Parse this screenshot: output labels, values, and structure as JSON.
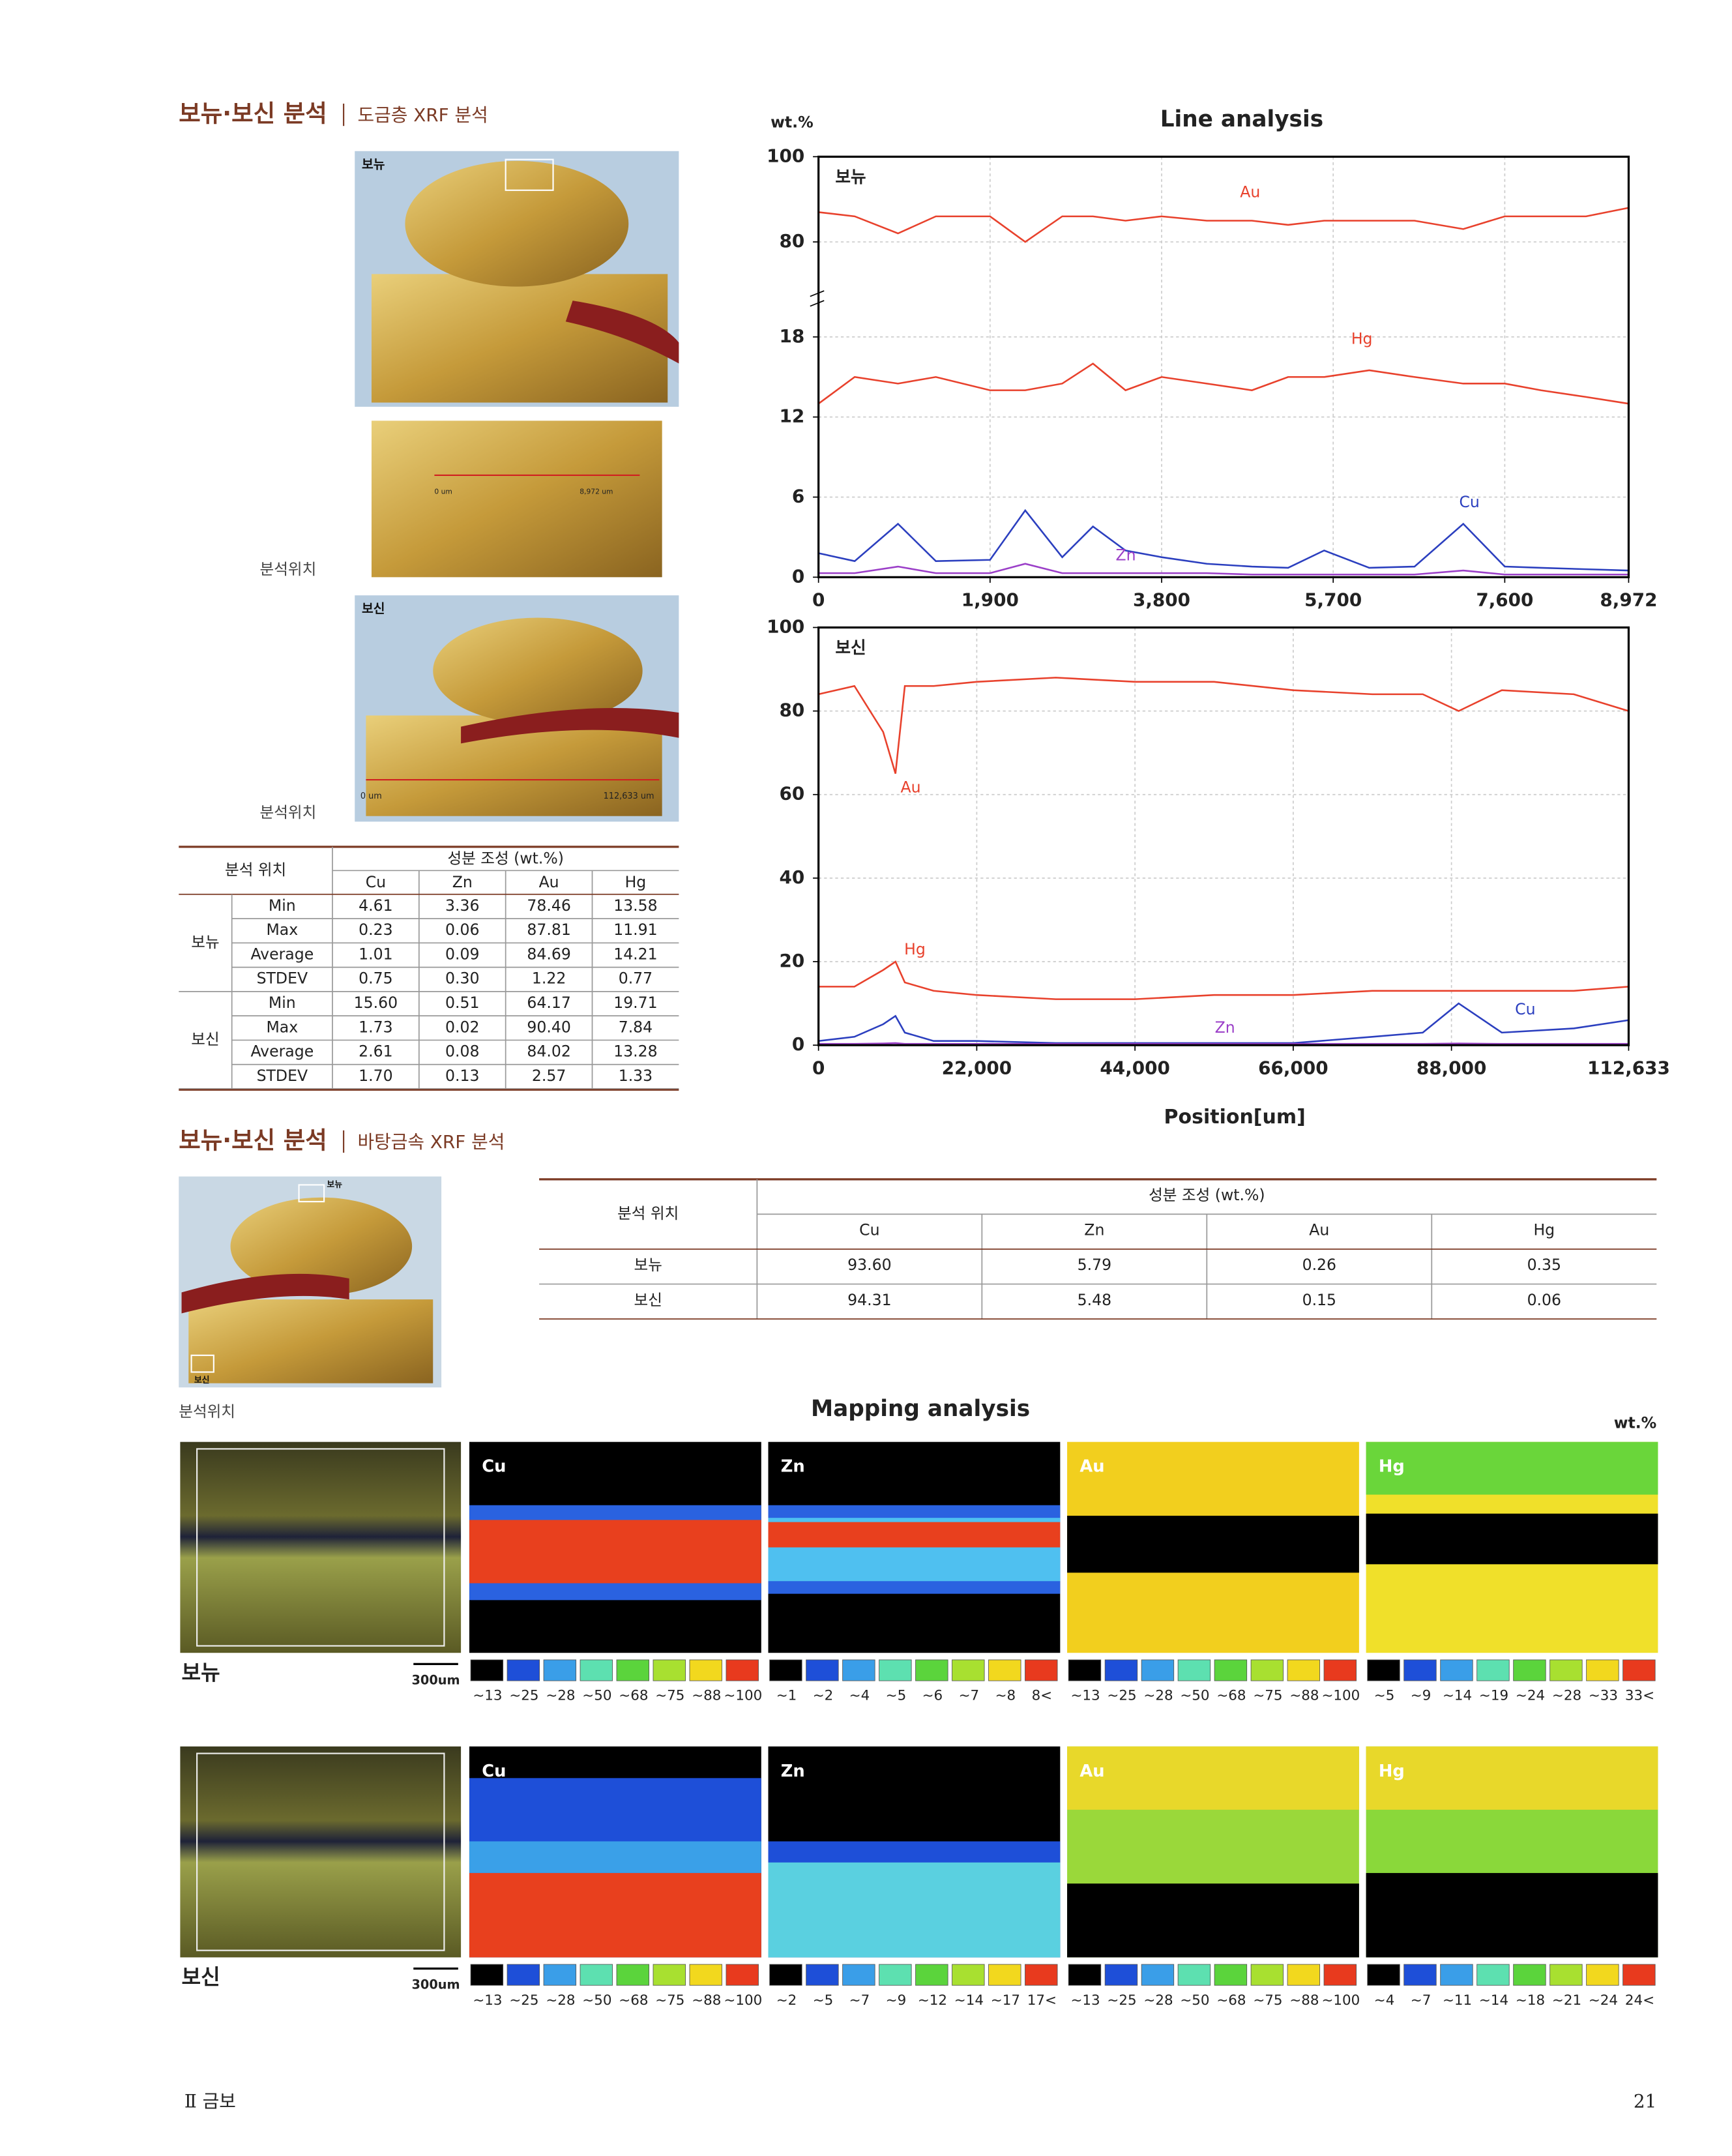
{
  "section1": {
    "title": "보뉴·보신 분석",
    "subtitle": "도금층 XRF 분석"
  },
  "photos": {
    "top_label": "보뉴",
    "mid_start": "0 um",
    "mid_end": "8,972 um",
    "bottom_label": "보신",
    "bottom_start": "0 um",
    "bottom_end": "112,633 um",
    "position_caption": "분석위치"
  },
  "table1": {
    "header": {
      "location": "분석 위치",
      "composition": "성분 조성 (wt.%)",
      "elements": [
        "Cu",
        "Zn",
        "Au",
        "Hg"
      ]
    },
    "groups": [
      {
        "name": "보뉴",
        "rows": [
          [
            "Min",
            "4.61",
            "3.36",
            "78.46",
            "13.58"
          ],
          [
            "Max",
            "0.23",
            "0.06",
            "87.81",
            "11.91"
          ],
          [
            "Average",
            "1.01",
            "0.09",
            "84.69",
            "14.21"
          ],
          [
            "STDEV",
            "0.75",
            "0.30",
            "1.22",
            "0.77"
          ]
        ]
      },
      {
        "name": "보신",
        "rows": [
          [
            "Min",
            "15.60",
            "0.51",
            "64.17",
            "19.71"
          ],
          [
            "Max",
            "1.73",
            "0.02",
            "90.40",
            "7.84"
          ],
          [
            "Average",
            "2.61",
            "0.08",
            "84.02",
            "13.28"
          ],
          [
            "STDEV",
            "1.70",
            "0.13",
            "2.57",
            "1.33"
          ]
        ]
      }
    ]
  },
  "line_analysis": {
    "title": "Line analysis",
    "y_unit": "wt.%",
    "x_label": "Position[um]",
    "charts": [
      {
        "type": "line",
        "label": "보뉴",
        "xlim": [
          0,
          8972
        ],
        "ylim": [
          0,
          100
        ],
        "axis_break": [
          18,
          80
        ],
        "yticks": [
          0,
          6,
          12,
          18,
          80,
          100
        ],
        "xticks": [
          0,
          {
            "value": 1900,
            "label": "1,900"
          },
          {
            "value": 3800,
            "label": "3,800"
          },
          {
            "value": 5700,
            "label": "5,700"
          },
          {
            "value": 7600,
            "label": "7,600"
          },
          {
            "value": 8972,
            "label": "8,972"
          }
        ],
        "grid": true,
        "x": [
          0,
          400,
          880,
          1300,
          1900,
          2290,
          2700,
          3040,
          3400,
          3800,
          4300,
          4800,
          5200,
          5600,
          6100,
          6600,
          7140,
          7600,
          8000,
          8500,
          8972
        ],
        "series": [
          {
            "name": "Au",
            "color": "#e8412c",
            "values": [
              87,
              86,
              82,
              86,
              86,
              80,
              86,
              86,
              85,
              86,
              85,
              85,
              84,
              85,
              85,
              85,
              83,
              86,
              86,
              86,
              88
            ]
          },
          {
            "name": "Hg",
            "color": "#e8412c",
            "values": [
              13,
              15,
              14.5,
              15,
              14,
              14,
              14.5,
              16,
              14,
              15,
              14.5,
              14,
              15,
              15,
              15.5,
              15,
              14.5,
              14.5,
              14,
              13.5,
              13
            ]
          },
          {
            "name": "Cu",
            "color": "#2b3fbf",
            "values": [
              1.8,
              1.2,
              4,
              1.2,
              1.3,
              5,
              1.5,
              3.8,
              2,
              1.5,
              1,
              0.8,
              0.7,
              2,
              0.7,
              0.8,
              4,
              0.8,
              0.7,
              0.6,
              0.5
            ]
          },
          {
            "name": "Zn",
            "color": "#9b3fc8",
            "values": [
              0.3,
              0.3,
              0.8,
              0.3,
              0.3,
              1,
              0.3,
              0.3,
              0.3,
              0.3,
              0.3,
              0.2,
              0.2,
              0.2,
              0.2,
              0.2,
              0.5,
              0.2,
              0.2,
              0.2,
              0.2
            ]
          }
        ]
      },
      {
        "type": "line",
        "label": "보신",
        "xlim": [
          0,
          112633
        ],
        "ylim": [
          0,
          100
        ],
        "yticks": [
          0,
          20,
          40,
          60,
          80,
          100
        ],
        "xticks": [
          0,
          {
            "value": 22000,
            "label": "22,000"
          },
          {
            "value": 44000,
            "label": "44,000"
          },
          {
            "value": 66000,
            "label": "66,000"
          },
          {
            "value": 88000,
            "label": "88,000"
          },
          {
            "value": 112633,
            "label": "112,633"
          }
        ],
        "grid": true,
        "x": [
          0,
          5000,
          9000,
          10700,
          12000,
          16000,
          22000,
          33000,
          44000,
          55000,
          66000,
          77000,
          84000,
          89000,
          95000,
          105000,
          112633
        ],
        "series": [
          {
            "name": "Au",
            "color": "#e8412c",
            "values": [
              84,
              86,
              75,
              65,
              86,
              86,
              87,
              88,
              87,
              87,
              85,
              84,
              84,
              80,
              85,
              84,
              80
            ]
          },
          {
            "name": "Hg",
            "color": "#e8412c",
            "values": [
              14,
              14,
              18,
              20,
              15,
              13,
              12,
              11,
              11,
              12,
              12,
              13,
              13,
              13,
              13,
              13,
              14
            ]
          },
          {
            "name": "Cu",
            "color": "#2b3fbf",
            "values": [
              1,
              2,
              5,
              7,
              3,
              1,
              1,
              0.5,
              0.5,
              0.5,
              0.5,
              2,
              3,
              10,
              3,
              4,
              6
            ]
          },
          {
            "name": "Zn",
            "color": "#9b3fc8",
            "values": [
              0.3,
              0.3,
              0.4,
              0.5,
              0.3,
              0.3,
              0.3,
              0.3,
              0.3,
              0.3,
              0.3,
              0.3,
              0.3,
              0.4,
              0.3,
              0.3,
              0.3
            ]
          }
        ]
      }
    ]
  },
  "section2": {
    "title": "보뉴·보신 분석",
    "subtitle": "바탕금속 XRF 분석",
    "photo_top": "보뉴",
    "photo_bottom": "보신",
    "position_caption": "분석위치"
  },
  "table2": {
    "header": {
      "location": "분석 위치",
      "composition": "성분 조성 (wt.%)",
      "elements": [
        "Cu",
        "Zn",
        "Au",
        "Hg"
      ]
    },
    "rows": [
      [
        "보뉴",
        "93.60",
        "5.79",
        "0.26",
        "0.35"
      ],
      [
        "보신",
        "94.31",
        "5.48",
        "0.15",
        "0.06"
      ]
    ]
  },
  "mapping": {
    "title": "Mapping analysis",
    "unit": "wt.%",
    "scale_colors": [
      "#000000",
      "#1e4fd8",
      "#3a9ee8",
      "#5de0b0",
      "#5bd43c",
      "#a8e030",
      "#f2d81e",
      "#e83a1e"
    ],
    "rows": [
      {
        "name": "보뉴",
        "scale_bar": "300um",
        "panels": [
          {
            "element": "Cu",
            "levels": [
              "~13",
              "~25",
              "~28",
              "~50",
              "~68",
              "~75",
              "~88",
              "~100"
            ]
          },
          {
            "element": "Zn",
            "levels": [
              "~1",
              "~2",
              "~4",
              "~5",
              "~6",
              "~7",
              "~8",
              "8<"
            ]
          },
          {
            "element": "Au",
            "levels": [
              "~13",
              "~25",
              "~28",
              "~50",
              "~68",
              "~75",
              "~88",
              "~100"
            ]
          },
          {
            "element": "Hg",
            "levels": [
              "~5",
              "~9",
              "~14",
              "~19",
              "~24",
              "~28",
              "~33",
              "33<"
            ]
          }
        ]
      },
      {
        "name": "보신",
        "scale_bar": "300um",
        "panels": [
          {
            "element": "Cu",
            "levels": [
              "~13",
              "~25",
              "~28",
              "~50",
              "~68",
              "~75",
              "~88",
              "~100"
            ]
          },
          {
            "element": "Zn",
            "levels": [
              "~2",
              "~5",
              "~7",
              "~9",
              "~12",
              "~14",
              "~17",
              "17<"
            ]
          },
          {
            "element": "Au",
            "levels": [
              "~13",
              "~25",
              "~28",
              "~50",
              "~68",
              "~75",
              "~88",
              "~100"
            ]
          },
          {
            "element": "Hg",
            "levels": [
              "~4",
              "~7",
              "~11",
              "~14",
              "~18",
              "~21",
              "~24",
              "24<"
            ]
          }
        ]
      }
    ]
  },
  "footer": {
    "chapter": "Ⅱ 금보",
    "page": "21"
  }
}
